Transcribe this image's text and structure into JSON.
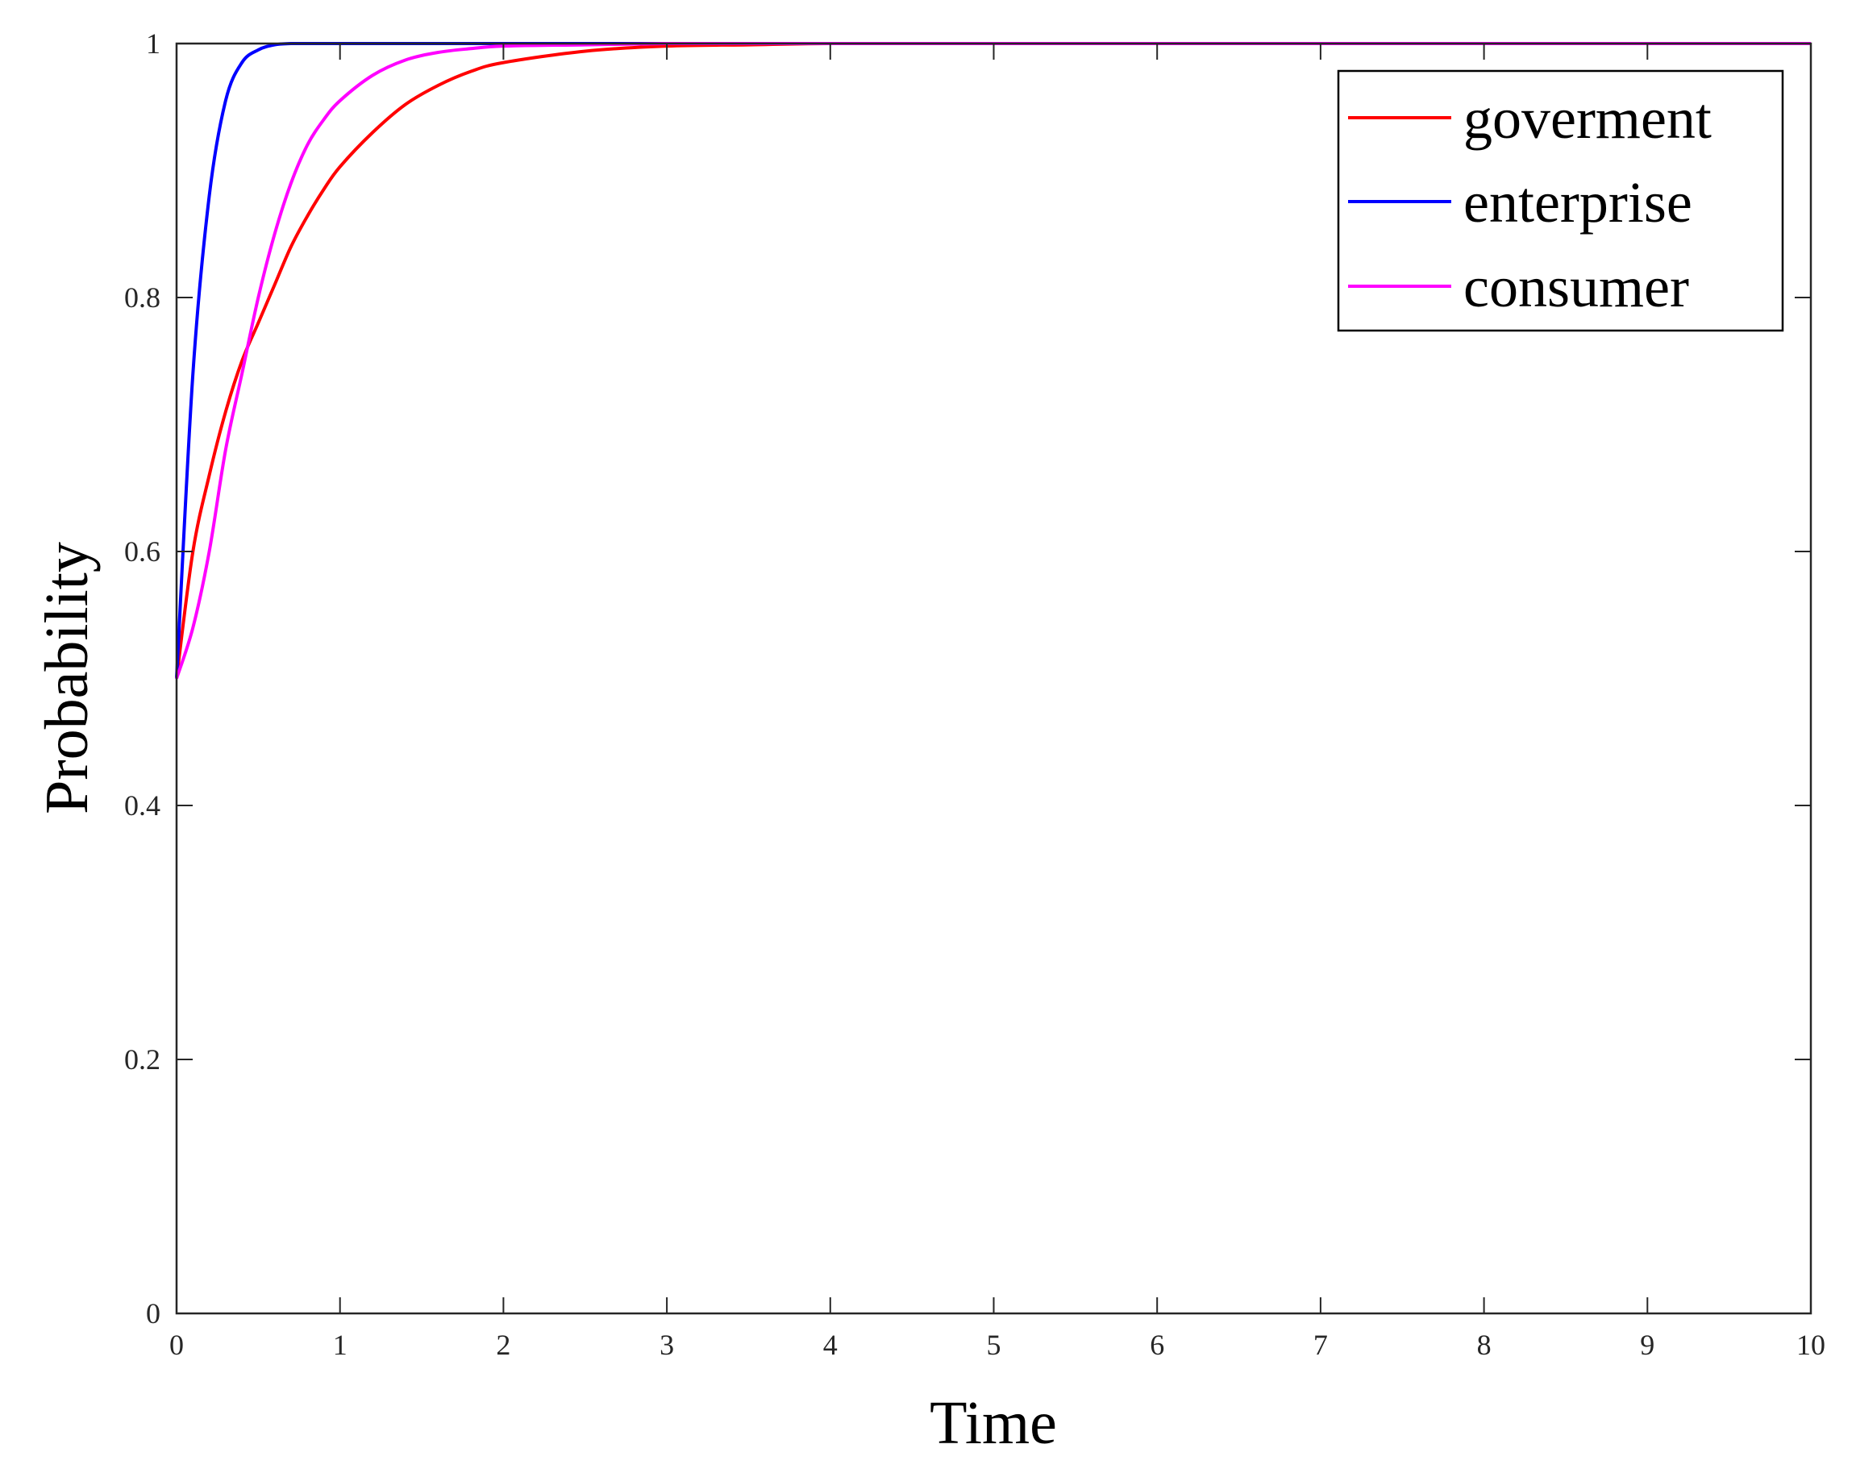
{
  "chart_data": {
    "type": "line",
    "title": "",
    "xlabel": "Time",
    "ylabel": "Probability",
    "xlim": [
      0,
      10
    ],
    "ylim": [
      0,
      1
    ],
    "xticks": [
      "0",
      "1",
      "2",
      "3",
      "4",
      "5",
      "6",
      "7",
      "8",
      "9",
      "10"
    ],
    "yticks": [
      "0",
      "0.2",
      "0.4",
      "0.6",
      "0.8",
      "1"
    ],
    "grid": false,
    "legend_position": "top-right",
    "x": [
      0,
      0.1,
      0.2,
      0.3,
      0.4,
      0.5,
      0.6,
      0.7,
      0.8,
      0.9,
      1.0,
      1.2,
      1.4,
      1.6,
      1.8,
      2.0,
      2.5,
      3.0,
      3.5,
      4.0,
      5.0,
      6.0,
      7.0,
      8.0,
      9.0,
      10.0
    ],
    "series": [
      {
        "name": "goverment",
        "color": "#ff0000",
        "values": [
          0.5,
          0.6,
          0.66,
          0.71,
          0.75,
          0.78,
          0.81,
          0.84,
          0.864,
          0.885,
          0.903,
          0.93,
          0.952,
          0.967,
          0.978,
          0.985,
          0.994,
          0.998,
          0.999,
          1.0,
          1.0,
          1.0,
          1.0,
          1.0,
          1.0,
          1.0
        ]
      },
      {
        "name": "enterprise",
        "color": "#0000ff",
        "values": [
          0.5,
          0.74,
          0.88,
          0.955,
          0.985,
          0.995,
          0.999,
          1.0,
          1.0,
          1.0,
          1.0,
          1.0,
          1.0,
          1.0,
          1.0,
          1.0,
          1.0,
          1.0,
          1.0,
          1.0,
          1.0,
          1.0,
          1.0,
          1.0,
          1.0,
          1.0
        ]
      },
      {
        "name": "consumer",
        "color": "#ff00ff",
        "values": [
          0.5,
          0.54,
          0.6,
          0.68,
          0.74,
          0.8,
          0.85,
          0.89,
          0.92,
          0.94,
          0.955,
          0.975,
          0.987,
          0.993,
          0.996,
          0.998,
          0.999,
          1.0,
          1.0,
          1.0,
          1.0,
          1.0,
          1.0,
          1.0,
          1.0,
          1.0
        ]
      }
    ]
  }
}
